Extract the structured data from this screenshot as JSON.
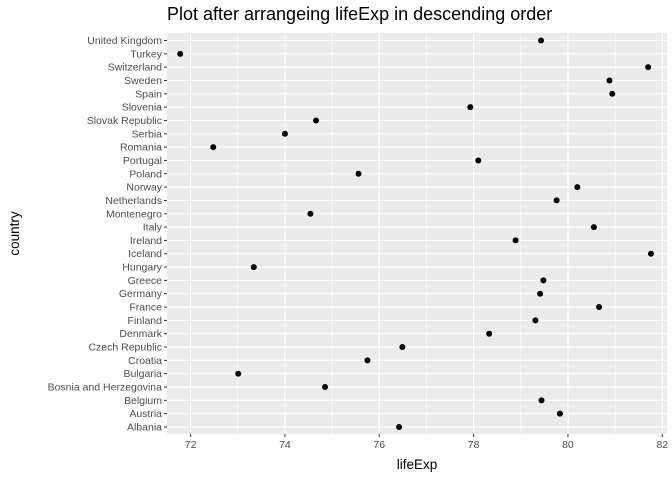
{
  "chart_data": {
    "type": "scatter",
    "title": "Plot after arrangeing lifeExp in descending order",
    "xlabel": "lifeExp",
    "ylabel": "country",
    "xlim": [
      71.5,
      82.1
    ],
    "xticks": [
      72,
      74,
      76,
      78,
      80,
      82
    ],
    "grid": true,
    "categories": [
      "United Kingdom",
      "Turkey",
      "Switzerland",
      "Sweden",
      "Spain",
      "Slovenia",
      "Slovak Republic",
      "Serbia",
      "Romania",
      "Portugal",
      "Poland",
      "Norway",
      "Netherlands",
      "Montenegro",
      "Italy",
      "Ireland",
      "Iceland",
      "Hungary",
      "Greece",
      "Germany",
      "France",
      "Finland",
      "Denmark",
      "Czech Republic",
      "Croatia",
      "Bulgaria",
      "Bosnia and Herzegovina",
      "Belgium",
      "Austria",
      "Albania"
    ],
    "values": [
      79.43,
      71.78,
      81.7,
      80.88,
      80.94,
      77.93,
      74.66,
      74.0,
      72.48,
      78.1,
      75.56,
      80.2,
      79.76,
      74.54,
      80.55,
      78.89,
      81.76,
      73.34,
      79.48,
      79.41,
      80.66,
      79.31,
      78.33,
      76.49,
      75.75,
      73.01,
      74.85,
      79.44,
      79.83,
      76.42
    ],
    "point_color": "#000000",
    "panel_background": "#ebebeb",
    "grid_color": "#ffffff"
  }
}
